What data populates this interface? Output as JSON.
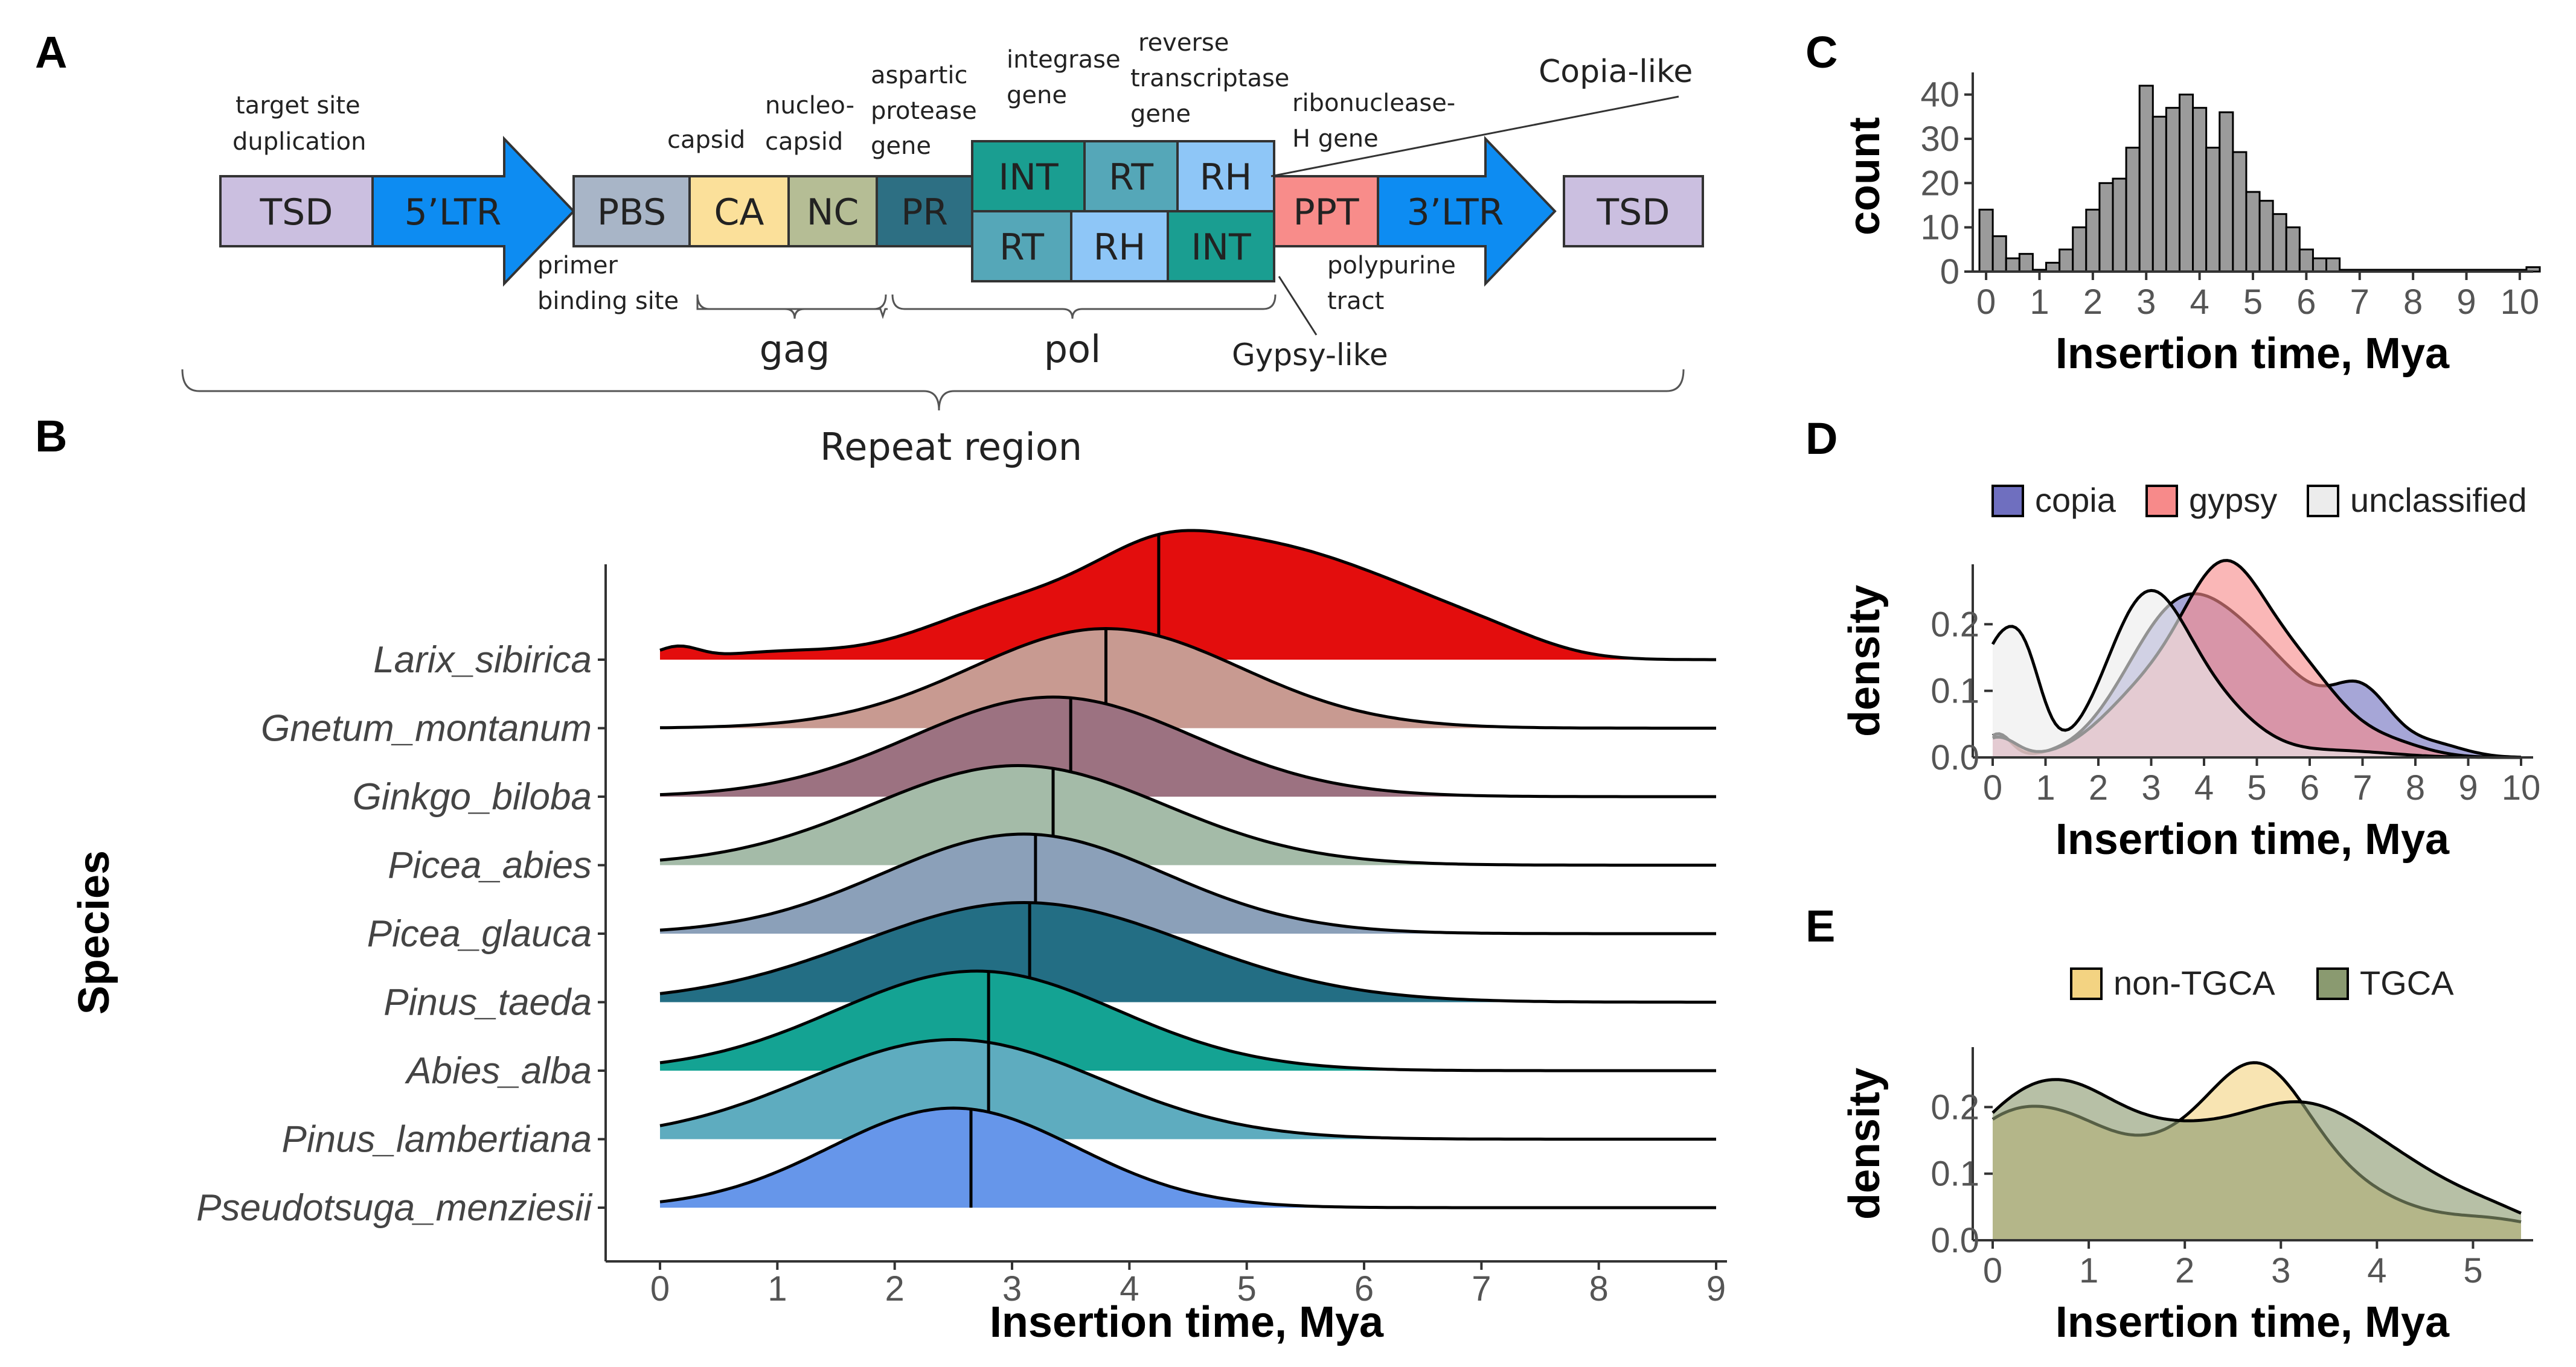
{
  "panels": {
    "a": "A",
    "b": "B",
    "c": "C",
    "d": "D",
    "e": "E"
  },
  "diagram": {
    "boxes": {
      "tsd_left": "TSD",
      "ltr5": "5’LTR",
      "pbs": "PBS",
      "ca": "CA",
      "nc": "NC",
      "pr": "PR",
      "int_top": "INT",
      "rt_top": "RT",
      "rh_top": "RH",
      "rt_bot": "RT",
      "rh_bot": "RH",
      "int_bot": "INT",
      "ppt": "PPT",
      "ltr3": "3’LTR",
      "tsd_right": "TSD"
    },
    "labels": {
      "tsd_a": "target site",
      "tsd_b": "duplication",
      "capsid": "capsid",
      "nucleo_a": "nucleo-",
      "nucleo_b": "capsid",
      "asp_a": "aspartic",
      "asp_b": "protease",
      "asp_c": "gene",
      "int_a": "integrase",
      "int_b": "gene",
      "rev_a": "reverse",
      "rev_b": "transcriptase",
      "rev_c": "gene",
      "rib_a": "ribonuclease-",
      "rib_b": "H gene",
      "copia_like": "Copia-like",
      "pbs_a": "primer",
      "pbs_b": "binding site",
      "ppt_a": "polypurine",
      "ppt_b": "tract",
      "gypsy_like": "Gypsy-like",
      "gag": "gag",
      "pol": "pol",
      "repeat": "Repeat region"
    },
    "colors": {
      "tsd": "#cbbfe0",
      "ltr": "#0d8cf2",
      "pbs": "#a8b5c7",
      "ca": "#fbe09a",
      "nc": "#b5bd95",
      "pr": "#2d6f83",
      "int": "#1a9e91",
      "rt": "#55a7b8",
      "rh": "#8ec6f7",
      "ppt": "#f88c8a"
    }
  },
  "chart_data": [
    {
      "id": "B",
      "type": "ridgeline",
      "xlabel": "Insertion time, Mya",
      "ylabel": "Species",
      "xlim": [
        0,
        9
      ],
      "xticks": [
        0,
        1,
        2,
        3,
        4,
        5,
        6,
        7,
        8,
        9
      ],
      "series": [
        {
          "name": "Larix_sibirica",
          "color": "#e30d0d",
          "median": 4.25
        },
        {
          "name": "Gnetum_montanum",
          "color": "#c89a91",
          "median": 3.8
        },
        {
          "name": "Ginkgo_biloba",
          "color": "#9c7281",
          "median": 3.5
        },
        {
          "name": "Picea_abies",
          "color": "#a4bba8",
          "median": 3.35
        },
        {
          "name": "Picea_glauca",
          "color": "#8ba0b9",
          "median": 3.2
        },
        {
          "name": "Pinus_taeda",
          "color": "#236e84",
          "median": 3.15
        },
        {
          "name": "Abies_alba",
          "color": "#14a393",
          "median": 2.8
        },
        {
          "name": "Pinus_lambertiana",
          "color": "#5eacbf",
          "median": 2.8
        },
        {
          "name": "Pseudotsuga_menziesii",
          "color": "#6696ea",
          "median": 2.65
        }
      ]
    },
    {
      "id": "C",
      "type": "bar",
      "xlabel": "Insertion time, Mya",
      "ylabel": "count",
      "xlim": [
        -0.25,
        10.25
      ],
      "ylim": [
        0,
        45
      ],
      "xticks": [
        0,
        1,
        2,
        3,
        4,
        5,
        6,
        7,
        8,
        9,
        10
      ],
      "yticks": [
        0,
        10,
        20,
        30,
        40
      ],
      "bin_width": 0.25,
      "x_start": -0.125,
      "values": [
        14,
        8,
        3,
        4,
        0,
        2,
        5,
        10,
        14,
        20,
        21,
        28,
        42,
        35,
        37,
        40,
        37,
        28,
        36,
        27,
        18,
        16,
        13,
        10,
        5,
        3,
        3,
        0,
        0,
        0,
        0,
        0,
        0,
        0,
        0,
        0,
        0,
        0,
        0,
        0,
        0,
        1
      ],
      "color": "#9b9b9b"
    },
    {
      "id": "D",
      "type": "area",
      "xlabel": "Insertion time, Mya",
      "ylabel": "density",
      "xlim": [
        0,
        10
      ],
      "ylim": [
        0,
        0.29
      ],
      "xticks": [
        0,
        1,
        2,
        3,
        4,
        5,
        6,
        7,
        8,
        9,
        10
      ],
      "yticks": [
        0.0,
        0.1,
        0.2
      ],
      "legend_position": "top",
      "series": [
        {
          "name": "copia",
          "color": "#6f6fbf"
        },
        {
          "name": "gypsy",
          "color": "#f78a8a"
        },
        {
          "name": "unclassified",
          "color": "#ececec"
        }
      ]
    },
    {
      "id": "E",
      "type": "area",
      "xlabel": "Insertion time, Mya",
      "ylabel": "density",
      "xlim": [
        0,
        5.5
      ],
      "ylim": [
        0,
        0.29
      ],
      "xticks": [
        0,
        1,
        2,
        3,
        4,
        5
      ],
      "yticks": [
        0.0,
        0.1,
        0.2
      ],
      "legend_position": "top",
      "series": [
        {
          "name": "non-TGCA",
          "color": "#f3d382"
        },
        {
          "name": "TGCA",
          "color": "#8a9a70"
        }
      ]
    }
  ],
  "tick_text": {
    "b_x": [
      "0",
      "1",
      "2",
      "3",
      "4",
      "5",
      "6",
      "7",
      "8",
      "9"
    ],
    "c_x": [
      "0",
      "1",
      "2",
      "3",
      "4",
      "5",
      "6",
      "7",
      "8",
      "9",
      "10"
    ],
    "c_y": [
      "0",
      "10",
      "20",
      "30",
      "40"
    ],
    "d_x": [
      "0",
      "1",
      "2",
      "3",
      "4",
      "5",
      "6",
      "7",
      "8",
      "9",
      "10"
    ],
    "d_y": [
      "0.0",
      "0.1",
      "0.2"
    ],
    "e_x": [
      "0",
      "1",
      "2",
      "3",
      "4",
      "5"
    ],
    "e_y": [
      "0.0",
      "0.1",
      "0.2"
    ]
  }
}
